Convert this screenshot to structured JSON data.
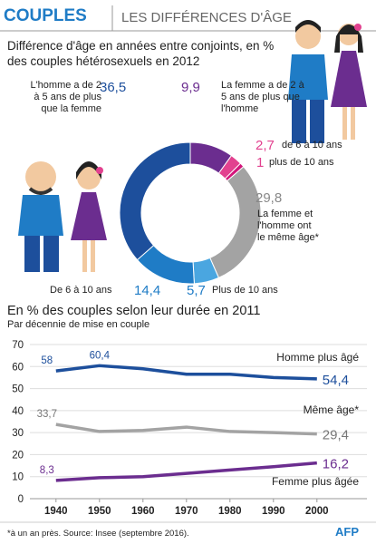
{
  "header": {
    "title": "COUPLES",
    "subtitle": "LES DIFFÉRENCES D'ÂGE"
  },
  "chart_data": [
    {
      "type": "pie",
      "title": "Différence d'âge en années entre conjoints, en % des couples hétérosexuels en 2012",
      "categories": [
        "La femme a de 2 à 5 ans de plus que l'homme",
        "de 6 à 10 ans",
        "plus de 10 ans",
        "La femme et l'homme ont le même âge*",
        "Plus de 10 ans",
        "De 6 à 10 ans",
        "L'homme a de 2 à 5 ans de plus que la femme"
      ],
      "values": [
        9.9,
        2.7,
        1,
        29.8,
        5.7,
        14.4,
        36.5
      ],
      "value_labels": [
        "9,9",
        "2,7",
        "1",
        "29,8",
        "5,7",
        "14,4",
        "36,5"
      ],
      "colors": [
        "#6b2d8f",
        "#e2418f",
        "#d3167b",
        "#a3a3a3",
        "#4aa6e0",
        "#1f7cc6",
        "#1d4f9c"
      ]
    },
    {
      "type": "line",
      "title": "En % des couples selon leur durée en 2011",
      "subtitle": "Par décennie de mise en couple",
      "x": [
        1940,
        1950,
        1960,
        1970,
        1980,
        1990,
        2000
      ],
      "xlim": [
        1934,
        2004
      ],
      "xticks": [
        1940,
        1950,
        1960,
        1970,
        1980,
        1990,
        2000
      ],
      "ylim": [
        0,
        70
      ],
      "yticks": [
        0,
        10,
        20,
        30,
        40,
        50,
        60,
        70
      ],
      "grid": true,
      "series": [
        {
          "name": "Homme plus âgé",
          "color": "#1d4f9c",
          "values": [
            58,
            60.4,
            59,
            56.5,
            56.5,
            55,
            54.4
          ],
          "value_labels": [
            "58",
            "60,4",
            null,
            null,
            null,
            null,
            "54,4"
          ]
        },
        {
          "name": "Même âge*",
          "color": "#a3a3a3",
          "values": [
            33.7,
            30.5,
            31,
            32.5,
            30.5,
            30,
            29.4
          ],
          "value_labels": [
            "33,7",
            null,
            null,
            null,
            null,
            null,
            "29,4"
          ]
        },
        {
          "name": "Femme plus âgée",
          "color": "#6b2d8f",
          "values": [
            8.3,
            9.5,
            10,
            11.5,
            13,
            14.5,
            16.2
          ],
          "value_labels": [
            "8,3",
            null,
            null,
            null,
            null,
            null,
            "16,2"
          ]
        }
      ]
    }
  ],
  "footer": {
    "note": "*à un an près. Source: Insee (septembre 2016).",
    "logo": "AFP"
  }
}
